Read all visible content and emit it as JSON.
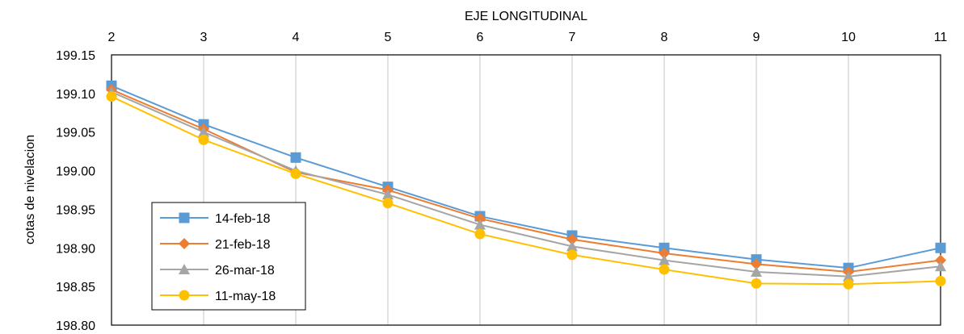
{
  "chart_data": {
    "type": "line",
    "title": "",
    "xlabel": "EJE LONGITUDINAL",
    "ylabel": "cotas de nivelacion",
    "x_axis_position": "top",
    "categories": [
      "2",
      "3",
      "4",
      "5",
      "6",
      "7",
      "8",
      "9",
      "10",
      "11"
    ],
    "y_ticks": [
      "199.15",
      "199.10",
      "199.05",
      "199.00",
      "198.95",
      "198.90",
      "198.85",
      "198.80"
    ],
    "ylim": [
      198.8,
      199.15
    ],
    "grid": "vertical",
    "legend_position": "bottom-left",
    "series": [
      {
        "name": "14-feb-18",
        "color": "#5B9BD5",
        "marker": "square",
        "values": [
          199.11,
          199.06,
          199.017,
          198.979,
          198.941,
          198.916,
          198.9,
          198.885,
          198.874,
          198.9
        ]
      },
      {
        "name": "21-feb-18",
        "color": "#ED7D31",
        "marker": "diamond",
        "values": [
          199.105,
          199.054,
          198.998,
          198.975,
          198.938,
          198.911,
          198.893,
          198.879,
          198.869,
          198.884
        ]
      },
      {
        "name": "26-mar-18",
        "color": "#A5A5A5",
        "marker": "triangle",
        "values": [
          199.102,
          199.05,
          199.0,
          198.969,
          198.93,
          198.902,
          198.884,
          198.869,
          198.863,
          198.876
        ]
      },
      {
        "name": "11-may-18",
        "color": "#FFC000",
        "marker": "circle",
        "values": [
          199.096,
          199.04,
          198.996,
          198.958,
          198.918,
          198.891,
          198.872,
          198.854,
          198.853,
          198.857
        ]
      }
    ]
  }
}
